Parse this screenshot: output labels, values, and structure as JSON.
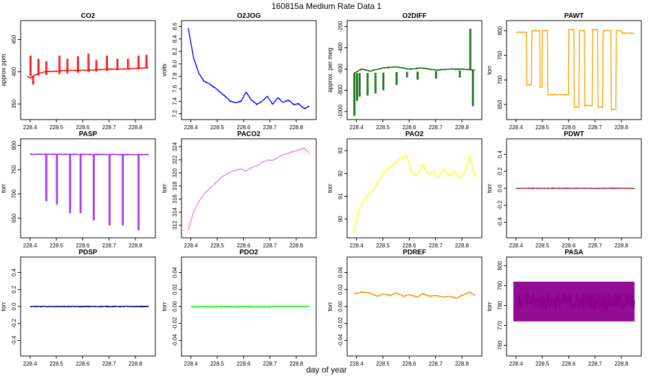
{
  "title": "160815a   Medium Rate Data 1",
  "xlabel": "day of year",
  "chart_data": [
    {
      "type": "line",
      "title": "CO2",
      "ylabel": "approx ppm",
      "color": "#ff0000",
      "xlim": [
        228.38,
        228.86
      ],
      "ylim": [
        330,
        475
      ],
      "xticks": [
        "228.4",
        "228.5",
        "228.6",
        "228.7",
        "228.8"
      ],
      "yticks": [
        "350",
        "400",
        "450"
      ],
      "series": [
        {
          "x": [
            228.39,
            228.4,
            228.42,
            228.44,
            228.46,
            228.5,
            228.55,
            228.6,
            228.65,
            228.7,
            228.75,
            228.8,
            228.85
          ],
          "y": [
            393,
            390,
            395,
            398,
            400,
            401,
            402,
            402,
            403,
            404,
            404,
            405,
            406
          ]
        }
      ],
      "spikes": {
        "x": [
          228.4,
          228.41,
          228.43,
          228.46,
          228.51,
          228.54,
          228.58,
          228.62,
          228.65,
          228.69,
          228.73,
          228.77,
          228.81,
          228.84
        ],
        "y": [
          425,
          380,
          420,
          416,
          425,
          420,
          424,
          428,
          418,
          425,
          420,
          420,
          425,
          426
        ]
      }
    },
    {
      "type": "line",
      "title": "O2JOG",
      "ylabel": "volts",
      "color": "#0000ff",
      "xlim": [
        228.38,
        228.86
      ],
      "ylim": [
        7.15,
        8.65
      ],
      "xticks": [
        "228.4",
        "228.5",
        "228.6",
        "228.7",
        "228.8"
      ],
      "yticks": [
        "7.2",
        "7.4",
        "7.6",
        "7.8",
        "8.0",
        "8.2",
        "8.4",
        "8.6"
      ],
      "series": [
        {
          "x": [
            228.39,
            228.41,
            228.43,
            228.45,
            228.47,
            228.49,
            228.51,
            228.53,
            228.55,
            228.57,
            228.59,
            228.61,
            228.63,
            228.65,
            228.67,
            228.69,
            228.71,
            228.73,
            228.75,
            228.77,
            228.79,
            228.81,
            228.83,
            228.85
          ],
          "y": [
            8.58,
            8.1,
            7.85,
            7.72,
            7.68,
            7.62,
            7.55,
            7.48,
            7.4,
            7.38,
            7.4,
            7.55,
            7.42,
            7.35,
            7.4,
            7.48,
            7.35,
            7.46,
            7.38,
            7.42,
            7.35,
            7.36,
            7.28,
            7.32
          ]
        }
      ]
    },
    {
      "type": "line",
      "title": "O2DIFF",
      "ylabel": "approx. per meg",
      "color": "#006400",
      "xlim": [
        228.38,
        228.86
      ],
      "ylim": [
        -1050,
        -170
      ],
      "xticks": [
        "228.4",
        "228.5",
        "228.6",
        "228.7",
        "228.8"
      ],
      "yticks": [
        "-1000",
        "-800",
        "-600",
        "-400",
        "-200"
      ],
      "series": [
        {
          "x": [
            228.39,
            228.42,
            228.45,
            228.5,
            228.55,
            228.6,
            228.65,
            228.7,
            228.75,
            228.8,
            228.85
          ],
          "y": [
            -640,
            -600,
            -620,
            -590,
            -580,
            -600,
            -590,
            -610,
            -600,
            -600,
            -610
          ]
        }
      ],
      "spikes": {
        "x": [
          228.39,
          228.4,
          228.41,
          228.44,
          228.47,
          228.5,
          228.55,
          228.59,
          228.63,
          228.7,
          228.79,
          228.83,
          228.84
        ],
        "y": [
          -1040,
          -900,
          -860,
          -850,
          -830,
          -800,
          -750,
          -680,
          -700,
          -690,
          -680,
          -220,
          -950
        ]
      }
    },
    {
      "type": "line",
      "title": "PAWT",
      "ylabel": "torr",
      "color": "#ffa500",
      "xlim": [
        228.38,
        228.86
      ],
      "ylim": [
        625,
        815
      ],
      "xticks": [
        "228.4",
        "228.5",
        "228.6",
        "228.7",
        "228.8"
      ],
      "yticks": [
        "650",
        "700",
        "750",
        "800"
      ],
      "series": [
        {
          "x": [
            228.4,
            228.44,
            228.44,
            228.46,
            228.46,
            228.49,
            228.49,
            228.5,
            228.5,
            228.52,
            228.52,
            228.6,
            228.6,
            228.62,
            228.62,
            228.64,
            228.64,
            228.66,
            228.66,
            228.69,
            228.69,
            228.71,
            228.71,
            228.73,
            228.73,
            228.76,
            228.76,
            228.78,
            228.78,
            228.8,
            228.8,
            228.85
          ],
          "y": [
            797,
            797,
            690,
            690,
            800,
            800,
            685,
            685,
            800,
            800,
            670,
            670,
            802,
            802,
            645,
            645,
            800,
            800,
            648,
            648,
            802,
            802,
            645,
            645,
            800,
            800,
            640,
            640,
            800,
            800,
            795,
            795
          ]
        }
      ]
    },
    {
      "type": "line",
      "title": "PASP",
      "ylabel": "torr",
      "color": "#a020f0",
      "xlim": [
        228.38,
        228.86
      ],
      "ylim": [
        615,
        808
      ],
      "xticks": [
        "228.4",
        "228.5",
        "228.6",
        "228.7",
        "228.8"
      ],
      "yticks": [
        "650",
        "700",
        "750",
        "800"
      ],
      "series": [
        {
          "x": [
            228.4,
            228.85
          ],
          "y": [
            782,
            781
          ]
        }
      ],
      "spikes": {
        "x": [
          228.46,
          228.5,
          228.55,
          228.59,
          228.64,
          228.7,
          228.75,
          228.81
        ],
        "y": [
          685,
          678,
          660,
          660,
          645,
          635,
          635,
          625
        ]
      }
    },
    {
      "type": "line",
      "title": "PACO2",
      "ylabel": "torr",
      "color": "#ee82ee",
      "xlim": [
        228.38,
        228.86
      ],
      "ylim": [
        310.5,
        324.8
      ],
      "xticks": [
        "228.4",
        "228.5",
        "228.6",
        "228.7",
        "228.8"
      ],
      "yticks": [
        "312",
        "314",
        "316",
        "318",
        "320",
        "322",
        "324"
      ],
      "series": [
        {
          "x": [
            228.39,
            228.41,
            228.43,
            228.45,
            228.47,
            228.49,
            228.51,
            228.53,
            228.55,
            228.57,
            228.59,
            228.61,
            228.63,
            228.65,
            228.67,
            228.69,
            228.71,
            228.73,
            228.75,
            228.77,
            228.79,
            228.81,
            228.83,
            228.85
          ],
          "y": [
            311.2,
            314,
            315.6,
            316.8,
            317.6,
            318.3,
            319.1,
            319.7,
            320.1,
            320.4,
            320.6,
            320.3,
            320.8,
            321.1,
            321.6,
            322,
            321.9,
            322.4,
            322.8,
            323,
            323.3,
            323.5,
            323.8,
            323
          ]
        }
      ]
    },
    {
      "type": "line",
      "title": "PAO2",
      "ylabel": "torr",
      "color": "#ffff00",
      "xlim": [
        228.38,
        228.86
      ],
      "ylim": [
        89.3,
        93.4
      ],
      "xticks": [
        "228.4",
        "228.5",
        "228.6",
        "228.7",
        "228.8"
      ],
      "yticks": [
        "90",
        "91",
        "92",
        "93"
      ],
      "series": [
        {
          "x": [
            228.39,
            228.41,
            228.43,
            228.45,
            228.47,
            228.49,
            228.51,
            228.53,
            228.55,
            228.57,
            228.59,
            228.61,
            228.63,
            228.65,
            228.67,
            228.69,
            228.71,
            228.73,
            228.75,
            228.77,
            228.79,
            228.81,
            228.83,
            228.85
          ],
          "y": [
            89.4,
            90.4,
            90.9,
            91.1,
            91.4,
            91.8,
            92.1,
            92.3,
            92.5,
            92.7,
            92.8,
            92,
            91.9,
            92.4,
            92,
            92.1,
            91.8,
            92.2,
            91.9,
            92.1,
            91.8,
            92,
            92.8,
            91.8
          ]
        }
      ]
    },
    {
      "type": "line",
      "title": "PDWT",
      "ylabel": "torr",
      "color": "#a52a2a",
      "xlim": [
        228.38,
        228.86
      ],
      "ylim": [
        -0.55,
        0.55
      ],
      "xticks": [
        "228.4",
        "228.5",
        "228.6",
        "228.7",
        "228.8"
      ],
      "yticks": [
        "-0.4",
        "-0.2",
        "0.0",
        "0.2",
        "0.4"
      ],
      "series": [
        {
          "x": [
            228.4,
            228.85
          ],
          "y": [
            0,
            0
          ]
        }
      ]
    },
    {
      "type": "line",
      "title": "PDSP",
      "ylabel": "torr",
      "color": "#000080",
      "xlim": [
        228.38,
        228.86
      ],
      "ylim": [
        -0.55,
        0.55
      ],
      "xticks": [
        "228.4",
        "228.5",
        "228.6",
        "228.7",
        "228.8"
      ],
      "yticks": [
        "-0.4",
        "-0.2",
        "0.0",
        "0.2",
        "0.4"
      ],
      "series": [
        {
          "x": [
            228.4,
            228.85
          ],
          "y": [
            0,
            0
          ]
        }
      ]
    },
    {
      "type": "line",
      "title": "PDO2",
      "ylabel": "torr",
      "color": "#00ff00",
      "xlim": [
        228.38,
        228.86
      ],
      "ylim": [
        -0.055,
        0.055
      ],
      "xticks": [
        "228.4",
        "228.5",
        "228.6",
        "228.7",
        "228.8"
      ],
      "yticks": [
        "-0.04",
        "-0.02",
        "0.00",
        "0.02",
        "0.04"
      ],
      "series": [
        {
          "x": [
            228.4,
            228.85
          ],
          "y": [
            0,
            0
          ]
        }
      ]
    },
    {
      "type": "line",
      "title": "PDREF",
      "ylabel": "torr",
      "color": "#ff8c00",
      "xlim": [
        228.38,
        228.86
      ],
      "ylim": [
        -0.055,
        0.055
      ],
      "xticks": [
        "228.4",
        "228.5",
        "228.6",
        "228.7",
        "228.8"
      ],
      "yticks": [
        "-0.04",
        "-0.02",
        "0.00",
        "0.02",
        "0.04"
      ],
      "series": [
        {
          "x": [
            228.39,
            228.42,
            228.45,
            228.48,
            228.5,
            228.53,
            228.55,
            228.58,
            228.6,
            228.63,
            228.65,
            228.68,
            228.7,
            228.73,
            228.75,
            228.78,
            228.8,
            228.83,
            228.85
          ],
          "y": [
            0.015,
            0.017,
            0.016,
            0.012,
            0.015,
            0.013,
            0.016,
            0.012,
            0.014,
            0.011,
            0.015,
            0.012,
            0.013,
            0.011,
            0.012,
            0.01,
            0.013,
            0.017,
            0.013
          ]
        }
      ]
    },
    {
      "type": "line",
      "title": "PASA",
      "ylabel": "torr",
      "color": "#8b008b",
      "xlim": [
        228.38,
        228.86
      ],
      "ylim": [
        756,
        803
      ],
      "xticks": [
        "228.4",
        "228.5",
        "228.6",
        "228.7",
        "228.8"
      ],
      "yticks": [
        "760",
        "770",
        "780",
        "790",
        "800"
      ],
      "series": [
        {
          "x": [
            228.4,
            228.85
          ],
          "y": [
            782,
            782
          ]
        }
      ],
      "band": [
        772,
        792
      ]
    }
  ]
}
